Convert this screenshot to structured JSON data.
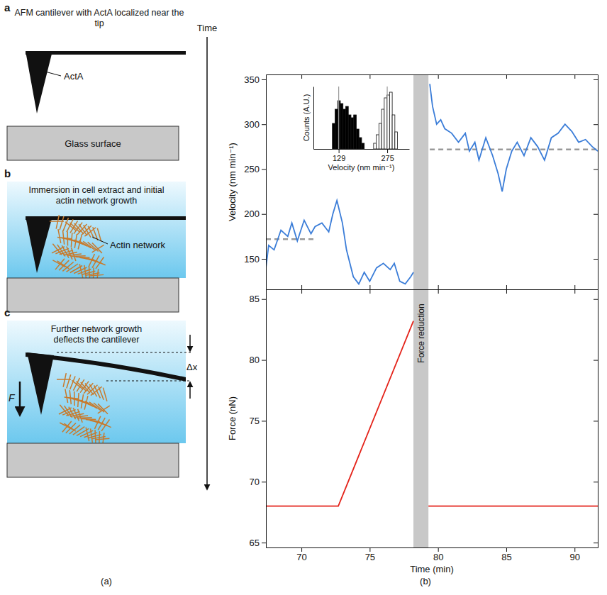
{
  "diagram": {
    "time_label": "Time",
    "panel_labels": [
      "(a)",
      "(b)"
    ],
    "steps": [
      {
        "letter": "a",
        "caption": "AFM cantilever with ActA localized near the tip",
        "tip_label": "ActA",
        "surface_label": "Glass surface"
      },
      {
        "letter": "b",
        "caption": "Immersion in cell extract and initial actin network growth",
        "network_label": "Actin network"
      },
      {
        "letter": "c",
        "caption": "Further network growth deflects the cantilever",
        "force_label": "F",
        "deflection_label": "Δx"
      }
    ]
  },
  "chart_data": [
    {
      "type": "line",
      "y_label": "Velocity (nm min⁻¹)",
      "xlim": [
        67.4,
        91.7
      ],
      "xticks": [
        70,
        75,
        80,
        85,
        90
      ],
      "ylim": [
        116,
        355.5
      ],
      "yticks": [
        150,
        200,
        250,
        300,
        350
      ],
      "tick_labels": "y",
      "band": {
        "x": [
          78.2,
          79.3
        ]
      },
      "series": [
        {
          "type": "line",
          "line_style": "dashed",
          "color": "#999999",
          "x": [
            67.4,
            71
          ],
          "values": [
            172,
            172
          ]
        },
        {
          "type": "line",
          "line_style": "dashed",
          "color": "#999999",
          "x": [
            79.4,
            91.7
          ],
          "values": [
            272,
            272
          ]
        },
        {
          "type": "line",
          "line_style": "solid",
          "color": "#3b7dd8",
          "x": [
            67.4,
            67.6,
            68,
            68.5,
            69,
            69.3,
            69.7,
            70.2,
            70.7,
            71,
            71.5,
            72,
            72.3,
            72.6,
            73,
            73.3,
            73.8,
            74.2,
            74.6,
            75,
            75.5,
            76,
            76.5,
            76.8,
            77.2,
            77.6,
            78,
            78.2,
            78.8,
            79.4,
            79.6,
            79.9,
            80.2,
            80.5,
            81,
            81.5,
            82,
            82.3,
            82.7,
            83,
            83.5,
            84,
            84.4,
            84.7,
            85,
            85.4,
            85.8,
            86.3,
            86.8,
            87.3,
            87.8,
            88.3,
            88.8,
            89.3,
            89.8,
            90.3,
            90.8,
            91.3,
            91.7
          ],
          "values": [
            140,
            165,
            160,
            182,
            175,
            190,
            170,
            193,
            178,
            186,
            190,
            180,
            200,
            215,
            190,
            160,
            130,
            122,
            135,
            125,
            140,
            145,
            138,
            145,
            125,
            122,
            130,
            135,
            null,
            345,
            320,
            300,
            305,
            295,
            290,
            280,
            290,
            270,
            280,
            260,
            285,
            265,
            245,
            225,
            250,
            270,
            280,
            265,
            285,
            275,
            260,
            285,
            290,
            300,
            292,
            280,
            283,
            275,
            270
          ]
        }
      ]
    },
    {
      "type": "line",
      "y_label": "Force (nN)",
      "x_label": "Time (min)",
      "xlim": [
        67.4,
        91.7
      ],
      "xticks": [
        70,
        75,
        80,
        85,
        90
      ],
      "ylim": [
        64.6,
        85.8
      ],
      "yticks": [
        65,
        70,
        75,
        80,
        85
      ],
      "tick_labels": true,
      "band": {
        "x": [
          78.2,
          79.3
        ],
        "label": "Force reduction"
      },
      "series": [
        {
          "type": "line",
          "line_style": "solid",
          "color": "#e4231a",
          "x": [
            67.4,
            72.7,
            78.2,
            78.8,
            79.3,
            91.7
          ],
          "values": [
            68,
            68,
            83.2,
            null,
            68,
            68
          ]
        }
      ]
    },
    {
      "type": "histogram",
      "x_label": "Velocity (nm min⁻¹)",
      "y_label": "Counts (A.U.)",
      "xlim": [
        53,
        341
      ],
      "xticks": [
        129,
        275
      ],
      "ylim": [
        0,
        1.1
      ],
      "tick_labels": "x",
      "grid": true,
      "series": [
        {
          "color": "#000000",
          "bins": [
            110,
            118,
            126,
            134,
            142,
            150,
            158,
            166,
            174,
            182,
            190,
            198,
            206
          ],
          "values": [
            0.45,
            0.7,
            0.85,
            0.8,
            0.7,
            0.75,
            0.6,
            0.55,
            0.6,
            0.35,
            0.2,
            0.1
          ]
        },
        {
          "color": "#ffffff",
          "bins": [
            234,
            242,
            250,
            258,
            266,
            274,
            282,
            290,
            298,
            306
          ],
          "values": [
            0.1,
            0.25,
            0.45,
            0.7,
            0.9,
            0.95,
            1.0,
            0.6,
            0.3
          ]
        }
      ]
    }
  ]
}
